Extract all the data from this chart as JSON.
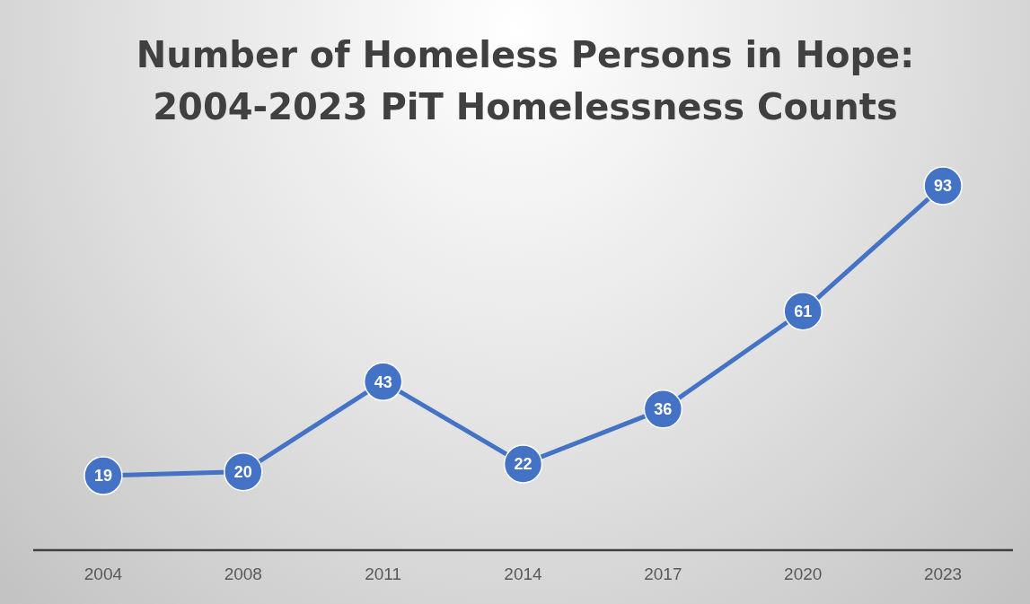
{
  "chart_data": {
    "type": "line",
    "title": "Number of Homeless Persons in Hope: 2004-2023 PiT Homelessness Counts",
    "categories": [
      "2004",
      "2008",
      "2011",
      "2014",
      "2017",
      "2020",
      "2023"
    ],
    "series": [
      {
        "color": "#4472c4",
        "values": [
          19,
          20,
          43,
          22,
          36,
          61,
          93
        ]
      }
    ],
    "marker": "circle",
    "data_labels": true,
    "grid": false,
    "legend": false
  }
}
